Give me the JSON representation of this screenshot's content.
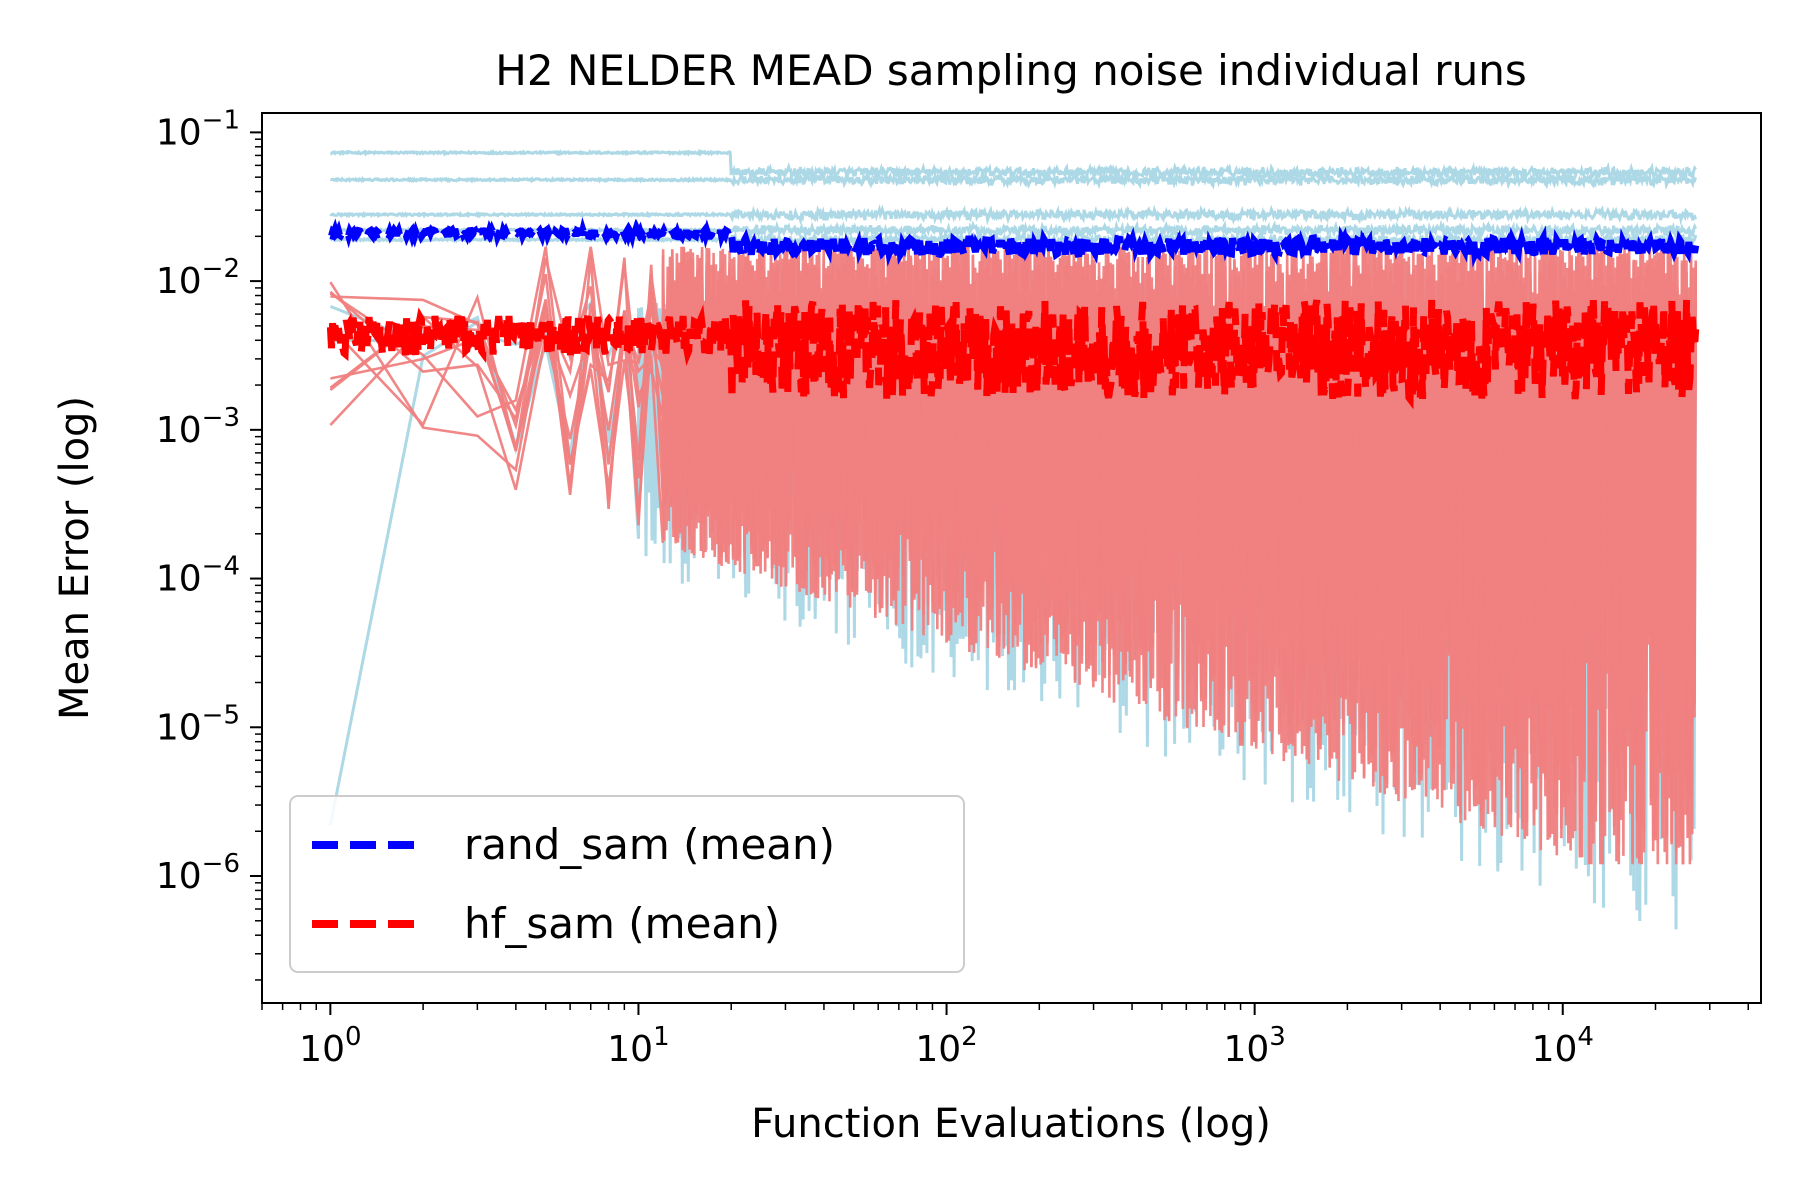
{
  "chart_data": {
    "type": "line",
    "title": "H2 NELDER MEAD sampling noise individual runs",
    "xlabel": "Function Evaluations (log)",
    "ylabel": "Mean Error (log)",
    "xscale": "log",
    "yscale": "log",
    "xlim": [
      0.6,
      44000
    ],
    "ylim": [
      1.4e-07,
      0.135
    ],
    "x_ticks": [
      {
        "value": 1,
        "base": "10",
        "exp": "0"
      },
      {
        "value": 10,
        "base": "10",
        "exp": "1"
      },
      {
        "value": 100,
        "base": "10",
        "exp": "2"
      },
      {
        "value": 1000,
        "base": "10",
        "exp": "3"
      },
      {
        "value": 10000,
        "base": "10",
        "exp": "4"
      }
    ],
    "y_ticks": [
      {
        "value": 1e-06,
        "base": "10",
        "exp": "−6"
      },
      {
        "value": 1e-05,
        "base": "10",
        "exp": "−5"
      },
      {
        "value": 0.0001,
        "base": "10",
        "exp": "−4"
      },
      {
        "value": 0.001,
        "base": "10",
        "exp": "−3"
      },
      {
        "value": 0.01,
        "base": "10",
        "exp": "−2"
      },
      {
        "value": 0.1,
        "base": "10",
        "exp": "−1"
      }
    ],
    "x_max": 27000,
    "legend_position": "lower-left",
    "series": [
      {
        "name": "rand_sam (mean)",
        "color": "#0000ff",
        "style": "dashed",
        "mean_level": 0.0175,
        "start_value": 0.021,
        "noise_low": 0.015,
        "noise_high": 0.0195
      },
      {
        "name": "hf_sam (mean)",
        "color": "#ff0000",
        "style": "dashed",
        "mean_level": 0.0038,
        "start_value": 0.0045,
        "noise_low": 0.0016,
        "noise_high": 0.0075
      }
    ],
    "individual_runs": {
      "rand_sam_color": "#add8e6",
      "hf_sam_color": "#f08080",
      "rand_sam_upper_levels": [
        0.073,
        0.048,
        0.028,
        0.022,
        0.019
      ],
      "rand_sam_envelope_min": 3e-07,
      "hf_sam_envelope_max": 0.017,
      "hf_sam_envelope_min": 1.2e-06
    }
  }
}
